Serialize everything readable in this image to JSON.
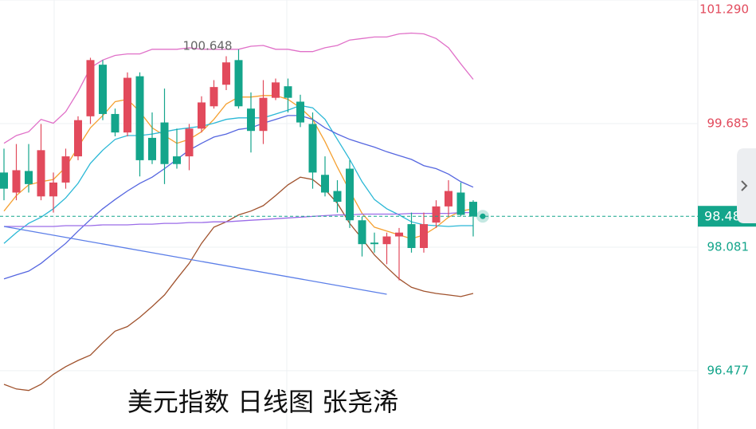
{
  "chart_data": {
    "type": "candlestick",
    "title": "美元指数 日线图 张尧浠",
    "open": [
      99.05,
      98.79,
      99.07,
      98.74,
      98.74,
      98.92,
      99.26,
      99.78,
      100.45,
      99.81,
      99.57,
      100.3,
      99.5,
      99.7,
      99.26,
      99.26,
      99.62,
      99.91,
      100.19,
      100.51,
      99.88,
      99.59,
      100.02,
      100.17,
      99.97,
      99.68,
      99.02,
      98.81,
      99.1,
      98.43,
      98.14,
      98.12,
      98.22,
      98.38,
      98.07,
      98.4,
      98.61,
      98.79,
      98.67
    ],
    "high": [
      99.36,
      99.42,
      99.42,
      99.68,
      99.05,
      99.36,
      99.78,
      100.54,
      100.51,
      99.88,
      100.35,
      100.35,
      99.83,
      100.14,
      99.62,
      99.68,
      100.04,
      100.25,
      100.56,
      100.648,
      100.09,
      100.25,
      100.27,
      100.27,
      100.06,
      99.83,
      99.26,
      98.95,
      99.21,
      98.48,
      98.27,
      98.27,
      98.33,
      98.53,
      98.53,
      98.69,
      98.95,
      98.92,
      98.69
    ],
    "low": [
      98.69,
      98.69,
      98.79,
      98.69,
      98.53,
      98.84,
      99.21,
      99.68,
      99.73,
      99.52,
      99.52,
      99.0,
      99.16,
      98.9,
      99.1,
      99.08,
      99.57,
      99.88,
      100.12,
      99.88,
      99.31,
      99.42,
      99.99,
      99.83,
      99.64,
      98.84,
      98.74,
      98.53,
      98.33,
      97.96,
      98.01,
      97.86,
      97.65,
      98.01,
      98.01,
      98.33,
      98.48,
      98.48,
      98.22
    ],
    "close": [
      98.84,
      99.08,
      98.9,
      99.34,
      98.92,
      99.26,
      99.73,
      100.51,
      99.81,
      99.57,
      100.28,
      99.21,
      99.21,
      99.16,
      99.16,
      99.62,
      99.96,
      100.16,
      100.48,
      99.91,
      99.59,
      100.02,
      100.22,
      100.02,
      99.7,
      99.05,
      98.79,
      98.67,
      98.43,
      98.12,
      98.12,
      98.22,
      98.27,
      98.07,
      98.38,
      98.61,
      98.81,
      98.5,
      98.48
    ],
    "up_color": "#e24a5c",
    "down_color": "#14a58b",
    "series": [
      {
        "color": "#e070c8",
        "values": [
          99.43,
          99.53,
          99.58,
          99.74,
          99.69,
          99.84,
          100.1,
          100.41,
          100.51,
          100.57,
          100.59,
          100.59,
          100.65,
          100.65,
          100.65,
          100.67,
          100.65,
          100.65,
          100.65,
          100.65,
          100.69,
          100.7,
          100.65,
          100.65,
          100.62,
          100.62,
          100.67,
          100.7,
          100.77,
          100.79,
          100.81,
          100.81,
          100.85,
          100.86,
          100.85,
          100.79,
          100.67,
          100.46,
          100.26
        ]
      },
      {
        "color": "#a0522d",
        "values": [
          96.3,
          96.24,
          96.22,
          96.3,
          96.43,
          96.53,
          96.61,
          96.68,
          96.84,
          96.99,
          97.05,
          97.17,
          97.31,
          97.46,
          97.67,
          97.87,
          98.13,
          98.34,
          98.41,
          98.5,
          98.55,
          98.62,
          98.75,
          98.89,
          98.99,
          98.96,
          98.83,
          98.65,
          98.39,
          98.19,
          97.98,
          97.82,
          97.67,
          97.56,
          97.51,
          97.48,
          97.46,
          97.44,
          97.48
        ]
      },
      {
        "color": "#f5a030",
        "values": [
          98.55,
          98.75,
          98.89,
          98.93,
          98.96,
          99.12,
          99.38,
          99.63,
          99.79,
          99.97,
          100.0,
          99.84,
          99.63,
          99.53,
          99.43,
          99.48,
          99.58,
          99.74,
          99.94,
          100.03,
          100.03,
          100.05,
          100.05,
          100.0,
          99.89,
          99.74,
          99.45,
          99.12,
          98.81,
          98.52,
          98.34,
          98.29,
          98.24,
          98.19,
          98.24,
          98.34,
          98.47,
          98.55,
          98.58
        ]
      },
      {
        "color": "#2bb8d6",
        "values": [
          98.13,
          98.27,
          98.39,
          98.47,
          98.58,
          98.72,
          98.91,
          99.17,
          99.34,
          99.48,
          99.53,
          99.53,
          99.55,
          99.58,
          99.61,
          99.63,
          99.65,
          99.69,
          99.74,
          99.76,
          99.76,
          99.76,
          99.81,
          99.86,
          99.92,
          99.89,
          99.74,
          99.48,
          99.22,
          98.93,
          98.7,
          98.58,
          98.5,
          98.41,
          98.37,
          98.36,
          98.35,
          98.36,
          98.36
        ]
      },
      {
        "color": "#5566e0",
        "values": [
          97.67,
          97.72,
          97.77,
          97.87,
          98.0,
          98.13,
          98.29,
          98.44,
          98.58,
          98.7,
          98.81,
          98.91,
          98.99,
          99.1,
          99.22,
          99.34,
          99.43,
          99.51,
          99.55,
          99.61,
          99.63,
          99.69,
          99.74,
          99.79,
          99.79,
          99.74,
          99.63,
          99.55,
          99.48,
          99.43,
          99.38,
          99.32,
          99.27,
          99.22,
          99.14,
          99.1,
          99.03,
          98.93,
          98.86
        ]
      },
      {
        "color": "#9b6ce8",
        "values": [
          98.35,
          98.35,
          98.35,
          98.35,
          98.35,
          98.36,
          98.36,
          98.36,
          98.37,
          98.37,
          98.37,
          98.38,
          98.38,
          98.39,
          98.39,
          98.4,
          98.4,
          98.41,
          98.41,
          98.42,
          98.43,
          98.44,
          98.45,
          98.46,
          98.47,
          98.48,
          98.49,
          98.5,
          98.5,
          98.51,
          98.51,
          98.51,
          98.51,
          98.52,
          98.52,
          98.52,
          98.52,
          98.53,
          98.53
        ]
      },
      {
        "color": "#5b7ee8",
        "x": [
          0,
          31
        ],
        "values": [
          98.35,
          97.47
        ]
      }
    ],
    "last_price": 98.482,
    "max_label": 100.648,
    "ylim": [
      95.72,
      101.29
    ],
    "yticks": [
      {
        "value": 101.29,
        "label": "101.290"
      },
      99.685,
      98.081,
      96.477
    ],
    "grid": true
  }
}
